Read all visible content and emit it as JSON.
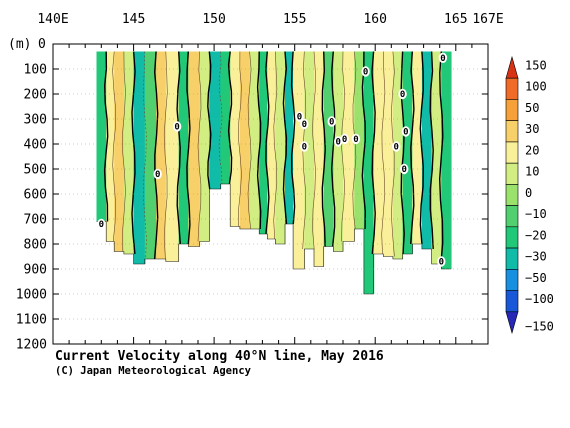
{
  "chart_data": {
    "type": "heatmap",
    "title": "Current Velocity along 40°N line, May 2016",
    "credit": "(C) Japan Meteorological Agency",
    "ylabel_unit": "(m)",
    "x_ticks": [
      {
        "value": 140,
        "label": "140E"
      },
      {
        "value": 145,
        "label": "145"
      },
      {
        "value": 150,
        "label": "150"
      },
      {
        "value": 155,
        "label": "155"
      },
      {
        "value": 160,
        "label": "160"
      },
      {
        "value": 165,
        "label": "165"
      },
      {
        "value": 167,
        "label": "167E"
      }
    ],
    "xlim": [
      140,
      167
    ],
    "y_ticks": [
      0,
      100,
      200,
      300,
      400,
      500,
      600,
      700,
      800,
      900,
      1000,
      1100,
      1200
    ],
    "ylim": [
      0,
      1200
    ],
    "y_inverted": true,
    "contour_zero_label": "0",
    "colorbar": {
      "levels": [
        "150",
        "100",
        "50",
        "30",
        "20",
        "10",
        "0",
        "−10",
        "−20",
        "−30",
        "−50",
        "−100",
        "−150"
      ],
      "colors": [
        "#d83214",
        "#f06a28",
        "#f5a038",
        "#f7d069",
        "#fbf09a",
        "#d2ee82",
        "#9ae26c",
        "#52d070",
        "#20c878",
        "#10bca8",
        "#1890e0",
        "#1858d8",
        "#2828b8"
      ]
    },
    "bands": [
      {
        "x0": 142.7,
        "x1": 143.3,
        "v": -12,
        "bottom": 710
      },
      {
        "x0": 143.3,
        "x1": 143.8,
        "v": 12,
        "bottom": 790
      },
      {
        "x0": 143.8,
        "x1": 144.4,
        "v": 24,
        "bottom": 830
      },
      {
        "x0": 144.4,
        "x1": 145.0,
        "v": 8,
        "bottom": 840
      },
      {
        "x0": 145.0,
        "x1": 145.7,
        "v": -22,
        "bottom": 880
      },
      {
        "x0": 145.7,
        "x1": 146.4,
        "v": -8,
        "bottom": 860
      },
      {
        "x0": 146.4,
        "x1": 147.0,
        "v": 22,
        "bottom": 860
      },
      {
        "x0": 147.0,
        "x1": 147.8,
        "v": 16,
        "bottom": 870
      },
      {
        "x0": 147.8,
        "x1": 148.4,
        "v": -15,
        "bottom": 800
      },
      {
        "x0": 148.4,
        "x1": 149.1,
        "v": 22,
        "bottom": 810
      },
      {
        "x0": 149.1,
        "x1": 149.7,
        "v": 6,
        "bottom": 790
      },
      {
        "x0": 149.7,
        "x1": 150.4,
        "v": -22,
        "bottom": 580
      },
      {
        "x0": 150.4,
        "x1": 151.0,
        "v": -14,
        "bottom": 560
      },
      {
        "x0": 151.0,
        "x1": 151.6,
        "v": 10,
        "bottom": 730
      },
      {
        "x0": 151.6,
        "x1": 152.2,
        "v": 22,
        "bottom": 740
      },
      {
        "x0": 152.2,
        "x1": 152.8,
        "v": 6,
        "bottom": 740
      },
      {
        "x0": 152.8,
        "x1": 153.3,
        "v": -20,
        "bottom": 760
      },
      {
        "x0": 153.3,
        "x1": 153.8,
        "v": 14,
        "bottom": 780
      },
      {
        "x0": 153.8,
        "x1": 154.4,
        "v": 8,
        "bottom": 800
      },
      {
        "x0": 154.4,
        "x1": 154.9,
        "v": -22,
        "bottom": 720
      },
      {
        "x0": 154.9,
        "x1": 155.6,
        "v": 14,
        "bottom": 900
      },
      {
        "x0": 155.6,
        "x1": 156.2,
        "v": 6,
        "bottom": 820
      },
      {
        "x0": 156.2,
        "x1": 156.8,
        "v": 12,
        "bottom": 890
      },
      {
        "x0": 156.8,
        "x1": 157.4,
        "v": -8,
        "bottom": 810
      },
      {
        "x0": 157.4,
        "x1": 158.0,
        "v": 8,
        "bottom": 830
      },
      {
        "x0": 158.0,
        "x1": 158.7,
        "v": 12,
        "bottom": 790
      },
      {
        "x0": 158.7,
        "x1": 159.3,
        "v": 4,
        "bottom": 740
      },
      {
        "x0": 159.3,
        "x1": 159.9,
        "v": -15,
        "bottom": 1000
      },
      {
        "x0": 159.9,
        "x1": 160.5,
        "v": 12,
        "bottom": 840
      },
      {
        "x0": 160.5,
        "x1": 161.1,
        "v": 16,
        "bottom": 850
      },
      {
        "x0": 161.1,
        "x1": 161.7,
        "v": 6,
        "bottom": 860
      },
      {
        "x0": 161.7,
        "x1": 162.3,
        "v": -12,
        "bottom": 840
      },
      {
        "x0": 162.3,
        "x1": 162.9,
        "v": 10,
        "bottom": 800
      },
      {
        "x0": 162.9,
        "x1": 163.5,
        "v": -22,
        "bottom": 820
      },
      {
        "x0": 163.5,
        "x1": 164.1,
        "v": 8,
        "bottom": 880
      },
      {
        "x0": 164.1,
        "x1": 164.7,
        "v": -12,
        "bottom": 900
      }
    ],
    "zero_labels": [
      {
        "x": 143.0,
        "depth": 720
      },
      {
        "x": 146.5,
        "depth": 520
      },
      {
        "x": 147.7,
        "depth": 330
      },
      {
        "x": 155.3,
        "depth": 290
      },
      {
        "x": 155.6,
        "depth": 320
      },
      {
        "x": 155.6,
        "depth": 410
      },
      {
        "x": 157.3,
        "depth": 310
      },
      {
        "x": 157.7,
        "depth": 390
      },
      {
        "x": 158.1,
        "depth": 380
      },
      {
        "x": 158.8,
        "depth": 380
      },
      {
        "x": 159.4,
        "depth": 110
      },
      {
        "x": 161.3,
        "depth": 410
      },
      {
        "x": 161.7,
        "depth": 200
      },
      {
        "x": 161.8,
        "depth": 500
      },
      {
        "x": 161.9,
        "depth": 350
      },
      {
        "x": 164.2,
        "depth": 55
      },
      {
        "x": 164.1,
        "depth": 870
      }
    ],
    "grid": true,
    "legend_position": "right"
  }
}
